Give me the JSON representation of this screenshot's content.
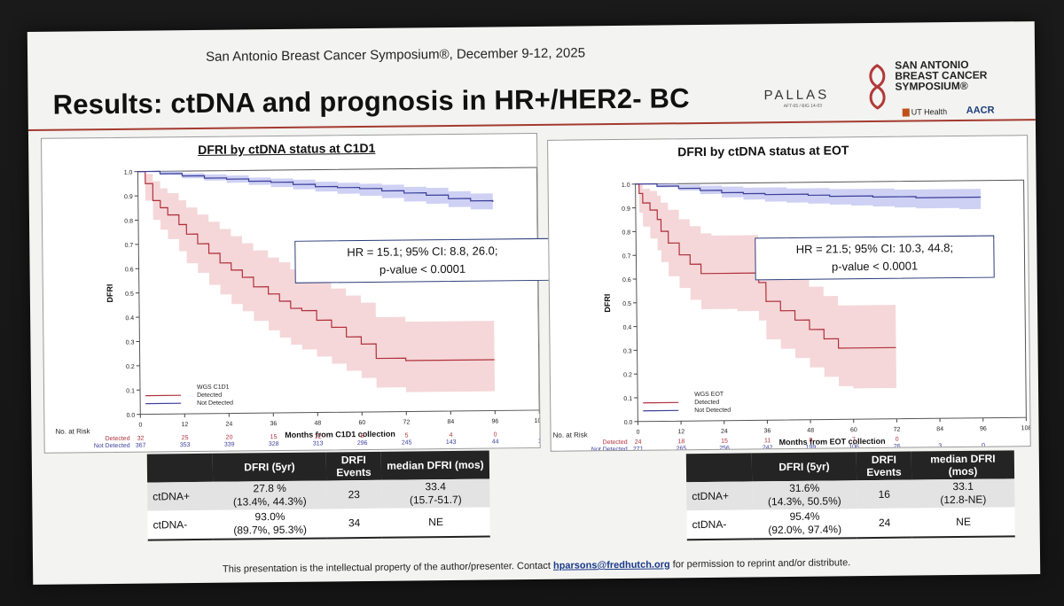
{
  "header": {
    "conference": "San Antonio Breast Cancer Symposium®, December 9-12, 2025",
    "title": "Results: ctDNA and prognosis in HR+/HER2- BC",
    "pallas": "PALLAS",
    "pallas_sub": "AFT-05 / BIG 14-03",
    "sabcs_logo_text": [
      "SAN ANTONIO",
      "BREAST CANCER",
      "SYMPOSIUM®"
    ],
    "ut_health": "UT Health",
    "aacr": "AACR"
  },
  "colors": {
    "detected": "#b0303a",
    "not_detected": "#3b3f9a",
    "band_detected": "#f2c9cc",
    "band_not": "#b9bdf0",
    "rule": "#a43a2f"
  },
  "chart_data": [
    {
      "type": "line",
      "title": "DFRI by ctDNA status at C1D1",
      "xlabel": "Months from C1D1 collection",
      "ylabel": "DFRI",
      "xlim": [
        0,
        108
      ],
      "ylim": [
        0,
        1.0
      ],
      "xticks": [
        0,
        12,
        24,
        36,
        48,
        60,
        72,
        84,
        96,
        108
      ],
      "yticks": [
        0.0,
        0.1,
        0.2,
        0.3,
        0.4,
        0.5,
        0.6,
        0.7,
        0.8,
        0.9,
        1.0
      ],
      "legend": {
        "title": "WGS C1D1",
        "entries": [
          "Detected",
          "Not Detected"
        ]
      },
      "annotation": [
        "HR = 15.1; 95% CI: 8.8, 26.0;",
        "p-value < 0.0001"
      ],
      "series": [
        {
          "name": "Detected",
          "x": [
            0,
            2,
            4,
            6,
            8,
            11,
            13,
            16,
            19,
            22,
            25,
            28,
            31,
            35,
            38,
            41,
            44,
            48,
            52,
            56,
            60,
            64,
            72,
            84,
            96
          ],
          "y": [
            1.0,
            0.95,
            0.88,
            0.85,
            0.82,
            0.78,
            0.74,
            0.7,
            0.66,
            0.62,
            0.59,
            0.56,
            0.52,
            0.49,
            0.46,
            0.43,
            0.42,
            0.38,
            0.35,
            0.31,
            0.28,
            0.22,
            0.21,
            0.21,
            0.21
          ],
          "lower": [
            1.0,
            0.88,
            0.8,
            0.76,
            0.72,
            0.67,
            0.62,
            0.58,
            0.53,
            0.49,
            0.45,
            0.42,
            0.38,
            0.34,
            0.31,
            0.28,
            0.26,
            0.23,
            0.2,
            0.17,
            0.14,
            0.1,
            0.08,
            0.08,
            0.08
          ],
          "upper": [
            1.0,
            0.99,
            0.96,
            0.93,
            0.91,
            0.88,
            0.85,
            0.82,
            0.79,
            0.76,
            0.73,
            0.7,
            0.67,
            0.64,
            0.62,
            0.59,
            0.57,
            0.54,
            0.51,
            0.48,
            0.45,
            0.39,
            0.37,
            0.37,
            0.37
          ]
        },
        {
          "name": "Not Detected",
          "x": [
            0,
            6,
            12,
            18,
            24,
            30,
            36,
            42,
            48,
            54,
            60,
            66,
            72,
            78,
            84,
            90,
            96
          ],
          "y": [
            1.0,
            0.99,
            0.98,
            0.97,
            0.965,
            0.955,
            0.95,
            0.94,
            0.93,
            0.925,
            0.92,
            0.91,
            0.9,
            0.89,
            0.875,
            0.865,
            0.86
          ],
          "lower": [
            1.0,
            0.985,
            0.97,
            0.96,
            0.95,
            0.94,
            0.93,
            0.92,
            0.91,
            0.9,
            0.89,
            0.88,
            0.865,
            0.855,
            0.84,
            0.83,
            0.82
          ],
          "upper": [
            1.0,
            1.0,
            0.99,
            0.985,
            0.98,
            0.97,
            0.965,
            0.96,
            0.95,
            0.945,
            0.94,
            0.935,
            0.925,
            0.92,
            0.905,
            0.895,
            0.89
          ]
        }
      ],
      "risk_table": {
        "label": "No. at Risk",
        "rows": [
          {
            "name": "Detected",
            "values": [
              "32",
              "25",
              "20",
              "15",
              "12",
              "8",
              "5",
              "4",
              "0",
              ""
            ]
          },
          {
            "name": "Not Detected",
            "values": [
              "367",
              "353",
              "339",
              "328",
              "313",
              "296",
              "245",
              "143",
              "44",
              "1"
            ]
          }
        ]
      }
    },
    {
      "type": "line",
      "title": "DFRI by ctDNA status at EOT",
      "xlabel": "Months from EOT collection",
      "ylabel": "DFRI",
      "xlim": [
        0,
        108
      ],
      "ylim": [
        0,
        1.0
      ],
      "xticks": [
        0,
        12,
        24,
        36,
        48,
        60,
        72,
        84,
        96,
        108
      ],
      "yticks": [
        0.0,
        0.1,
        0.2,
        0.3,
        0.4,
        0.5,
        0.6,
        0.7,
        0.8,
        0.9,
        1.0
      ],
      "legend": {
        "title": "WGS EOT",
        "entries": [
          "Detected",
          "Not Detected"
        ]
      },
      "annotation": [
        "HR = 21.5; 95% CI: 10.3, 44.8;",
        "p-value < 0.0001"
      ],
      "series": [
        {
          "name": "Detected",
          "x": [
            0,
            1,
            2,
            4,
            6,
            7,
            9,
            12,
            15,
            18,
            21,
            24,
            28,
            34,
            36,
            40,
            44,
            48,
            52,
            56,
            60,
            72
          ],
          "y": [
            1.0,
            0.96,
            0.92,
            0.89,
            0.85,
            0.8,
            0.75,
            0.7,
            0.66,
            0.62,
            0.62,
            0.62,
            0.62,
            0.58,
            0.5,
            0.46,
            0.42,
            0.38,
            0.34,
            0.3,
            0.3,
            0.3
          ],
          "lower": [
            1.0,
            0.88,
            0.82,
            0.77,
            0.72,
            0.67,
            0.61,
            0.56,
            0.51,
            0.47,
            0.47,
            0.47,
            0.46,
            0.42,
            0.34,
            0.3,
            0.26,
            0.22,
            0.18,
            0.14,
            0.13,
            0.13
          ],
          "upper": [
            1.0,
            1.0,
            0.98,
            0.97,
            0.95,
            0.92,
            0.89,
            0.85,
            0.82,
            0.79,
            0.78,
            0.78,
            0.78,
            0.74,
            0.68,
            0.64,
            0.6,
            0.56,
            0.52,
            0.48,
            0.48,
            0.48
          ]
        },
        {
          "name": "Not Detected",
          "x": [
            0,
            6,
            12,
            18,
            24,
            30,
            36,
            42,
            48,
            54,
            60,
            66,
            72,
            78,
            84,
            90,
            96
          ],
          "y": [
            1.0,
            0.99,
            0.98,
            0.97,
            0.96,
            0.955,
            0.95,
            0.95,
            0.945,
            0.94,
            0.94,
            0.935,
            0.935,
            0.93,
            0.93,
            0.93,
            0.93
          ],
          "lower": [
            1.0,
            0.985,
            0.97,
            0.955,
            0.94,
            0.93,
            0.92,
            0.915,
            0.91,
            0.905,
            0.9,
            0.895,
            0.89,
            0.885,
            0.885,
            0.88,
            0.88
          ],
          "upper": [
            1.0,
            1.0,
            0.995,
            0.99,
            0.985,
            0.98,
            0.98,
            0.975,
            0.975,
            0.97,
            0.97,
            0.97,
            0.965,
            0.965,
            0.965,
            0.965,
            0.965
          ]
        }
      ],
      "risk_table": {
        "label": "No. at Risk",
        "rows": [
          {
            "name": "Detected",
            "values": [
              "24",
              "18",
              "15",
              "11",
              "9",
              "7",
              "0",
              "",
              ""
            ]
          },
          {
            "name": "Not Detected",
            "values": [
              "271",
              "265",
              "256",
              "242",
              "199",
              "106",
              "26",
              "3",
              "0"
            ]
          }
        ]
      }
    }
  ],
  "tables": [
    {
      "headers": [
        "",
        "DFRI (5yr)",
        "DRFI Events",
        "median DFRI (mos)"
      ],
      "rows": [
        {
          "label": "ctDNA+",
          "dfri": [
            "27.8 %",
            "(13.4%, 44.3%)"
          ],
          "events": "23",
          "median": [
            "33.4",
            "(15.7-51.7)"
          ]
        },
        {
          "label": "ctDNA-",
          "dfri": [
            "93.0%",
            "(89.7%, 95.3%)"
          ],
          "events": "34",
          "median": [
            "NE"
          ]
        }
      ]
    },
    {
      "headers": [
        "",
        "DFRI (5yr)",
        "DRFI Events",
        "median DFRI (mos)"
      ],
      "rows": [
        {
          "label": "ctDNA+",
          "dfri": [
            "31.6%",
            "(14.3%, 50.5%)"
          ],
          "events": "16",
          "median": [
            "33.1",
            "(12.8-NE)"
          ]
        },
        {
          "label": "ctDNA-",
          "dfri": [
            "95.4%",
            "(92.0%, 97.4%)"
          ],
          "events": "24",
          "median": [
            "NE"
          ]
        }
      ]
    }
  ],
  "footer": {
    "before": "This presentation is the intellectual property of the author/presenter. Contact ",
    "link": "hparsons@fredhutch.org",
    "after": " for permission to reprint and/or distribute."
  }
}
